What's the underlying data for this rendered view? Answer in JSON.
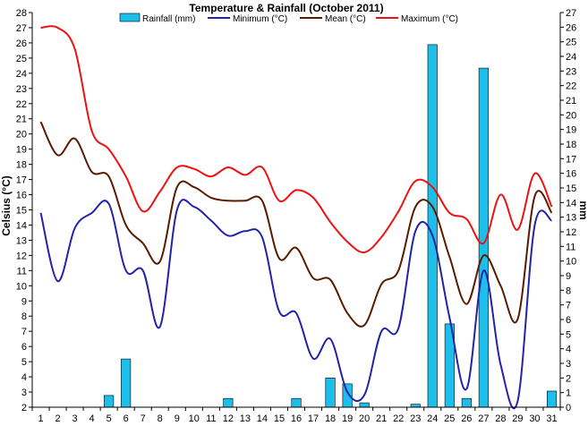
{
  "chart_data": {
    "type": "bar+line",
    "title": "Temperature & Rainfall (October 2011)",
    "ylabel_left": "Celsius (°C)",
    "ylabel_right": "mm",
    "ylim_left": [
      2,
      28
    ],
    "ylim_right": [
      0,
      27
    ],
    "grid": false,
    "legend_position": "top",
    "x": [
      1,
      2,
      3,
      4,
      5,
      6,
      7,
      8,
      9,
      10,
      11,
      12,
      13,
      14,
      15,
      16,
      17,
      18,
      19,
      20,
      21,
      22,
      23,
      24,
      25,
      26,
      27,
      28,
      29,
      30,
      31
    ],
    "rainfall": {
      "name": "Rainfall (mm)",
      "color": "#1EBEEA",
      "values": [
        0,
        0,
        0,
        0,
        0.8,
        3.3,
        0,
        0,
        0,
        0,
        0,
        0.6,
        0,
        0,
        0,
        0.6,
        0,
        2.0,
        1.6,
        0.3,
        0,
        0,
        0.2,
        24.8,
        5.7,
        0.6,
        23.2,
        0,
        0,
        0,
        1.1
      ]
    },
    "series": [
      {
        "name": "Minimum (°C)",
        "color": "#2222AA",
        "values": [
          14.8,
          10.3,
          13.8,
          14.8,
          15.4,
          11.0,
          11.0,
          7.3,
          15.0,
          15.2,
          14.3,
          13.3,
          13.6,
          13.2,
          8.3,
          8.2,
          5.2,
          6.5,
          3.0,
          2.8,
          7.0,
          7.2,
          13.6,
          13.3,
          7.9,
          3.2,
          11.0,
          4.8,
          2.4,
          14.0,
          14.3
        ]
      },
      {
        "name": "Mean (°C)",
        "color": "#5A1A00",
        "values": [
          20.8,
          18.6,
          19.7,
          17.5,
          17.2,
          14.0,
          12.8,
          11.6,
          16.5,
          16.5,
          15.8,
          15.6,
          15.6,
          15.6,
          11.8,
          12.5,
          10.5,
          10.4,
          8.2,
          7.4,
          10.1,
          11.0,
          15.2,
          15.2,
          11.9,
          8.8,
          12.0,
          10.0,
          7.8,
          15.9,
          14.8
        ]
      },
      {
        "name": "Maximum (°C)",
        "color": "#EE1111",
        "values": [
          27.0,
          27.0,
          25.6,
          20.2,
          19.0,
          17.2,
          14.9,
          16.2,
          17.8,
          17.7,
          17.2,
          17.8,
          17.3,
          17.8,
          15.6,
          16.3,
          15.8,
          14.2,
          12.9,
          12.2,
          13.2,
          14.9,
          16.9,
          16.5,
          14.8,
          14.4,
          12.8,
          16.0,
          13.7,
          17.4,
          15.2
        ]
      }
    ],
    "left_ticks": [
      "2",
      "3",
      "4",
      "5",
      "6",
      "7",
      "8",
      "9",
      "10",
      "11",
      "12",
      "13",
      "14",
      "15",
      "16",
      "17",
      "18",
      "19",
      "20",
      "21",
      "22",
      "23",
      "24",
      "25",
      "26",
      "27",
      "28"
    ],
    "right_ticks": [
      "0",
      "1",
      "2",
      "3",
      "4",
      "5",
      "6",
      "7",
      "8",
      "9",
      "10",
      "11",
      "12",
      "13",
      "14",
      "15",
      "16",
      "17",
      "18",
      "19",
      "20",
      "21",
      "22",
      "23",
      "24",
      "25",
      "26",
      "27"
    ],
    "x_ticks": [
      "1",
      "2",
      "3",
      "4",
      "5",
      "6",
      "7",
      "8",
      "9",
      "10",
      "11",
      "12",
      "13",
      "14",
      "15",
      "16",
      "17",
      "18",
      "19",
      "20",
      "21",
      "22",
      "23",
      "24",
      "25",
      "26",
      "27",
      "28",
      "29",
      "30",
      "31"
    ]
  }
}
